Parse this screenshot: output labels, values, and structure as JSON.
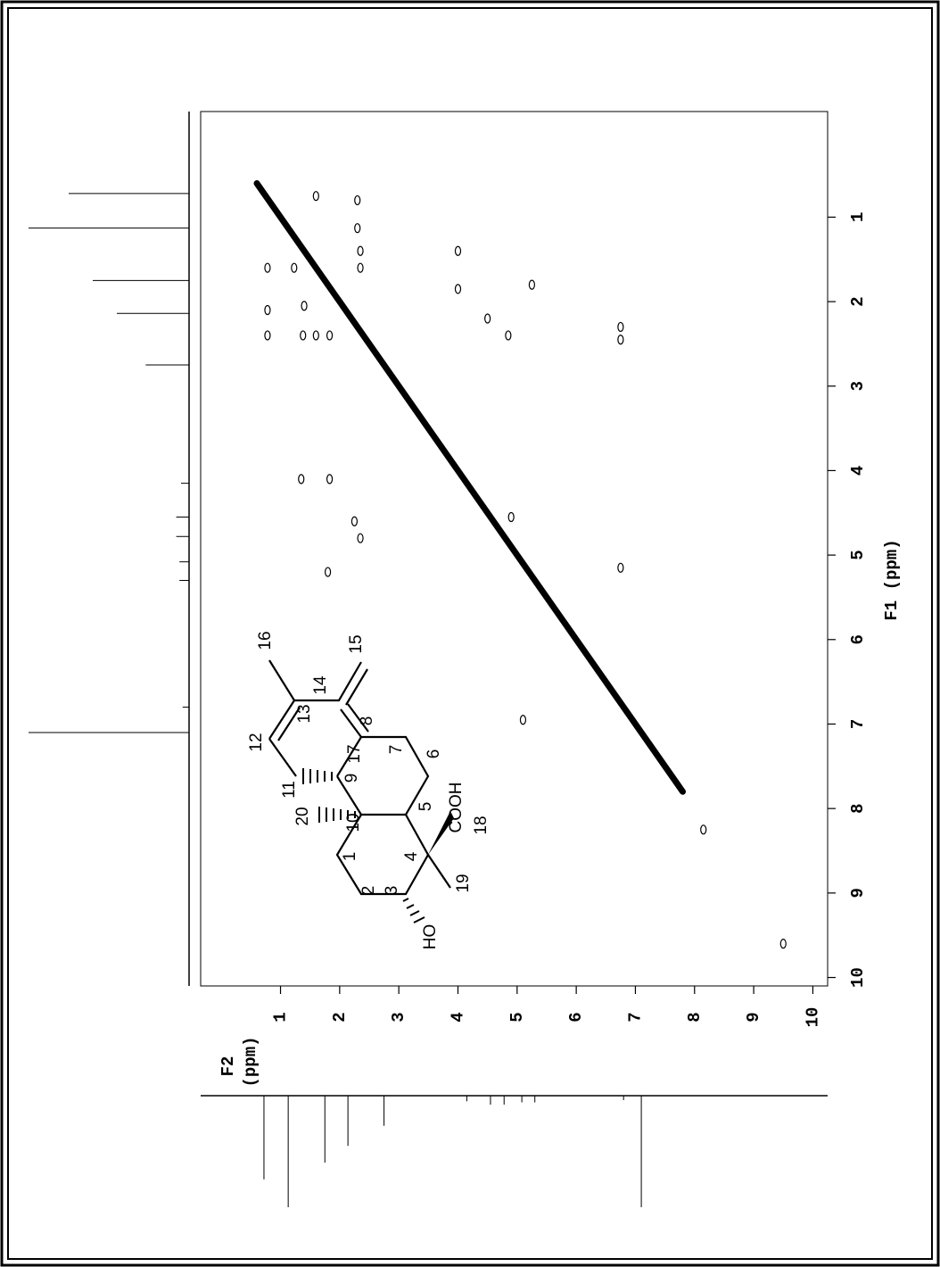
{
  "chart_data": {
    "type": "cosy",
    "xlabel": [
      "F2",
      "(ppm)"
    ],
    "ylabel": "F1 (ppm)",
    "xlim": [
      -0.35,
      10.25
    ],
    "ylim": [
      -0.25,
      10.1
    ],
    "xticks": [
      1,
      2,
      3,
      4,
      5,
      6,
      7,
      8,
      9,
      10
    ],
    "yticks": [
      1,
      2,
      3,
      4,
      5,
      6,
      7,
      8,
      9,
      10
    ],
    "color": "#000000",
    "diagonal": [
      0.6,
      7.8
    ],
    "cross_peaks": {
      "x": [
        4.0,
        4.0,
        5.25,
        4.5,
        4.85,
        6.75,
        6.75,
        1.35,
        1.83,
        2.25,
        2.35,
        1.8,
        6.75,
        5.1,
        4.9,
        8.15,
        9.5,
        1.6,
        2.3,
        2.3,
        2.35,
        2.35,
        0.78,
        0.78,
        1.38,
        1.6,
        1.83,
        0.78,
        1.23,
        1.4
      ],
      "y": [
        1.4,
        1.85,
        1.8,
        2.2,
        2.4,
        2.3,
        2.45,
        4.1,
        4.1,
        4.6,
        4.8,
        5.2,
        5.15,
        6.95,
        4.55,
        8.25,
        9.6,
        0.75,
        0.8,
        1.13,
        1.4,
        1.6,
        1.6,
        2.1,
        2.4,
        2.4,
        2.4,
        2.4,
        1.6,
        2.05
      ]
    },
    "projection": {
      "ppm": [
        0.72,
        1.13,
        1.75,
        2.14,
        2.75,
        4.15,
        4.55,
        4.78,
        5.08,
        5.3,
        6.8,
        7.1
      ],
      "intensity": [
        75,
        100,
        60,
        45,
        27,
        5,
        8,
        8,
        6,
        6,
        4,
        100
      ]
    },
    "structure": {
      "labels": [
        "1",
        "2",
        "3",
        "4",
        "5",
        "6",
        "7",
        "8",
        "9",
        "10",
        "11",
        "12",
        "13",
        "14",
        "15",
        "16",
        "17",
        "18",
        "19",
        "20",
        "HO",
        "COOH"
      ]
    }
  }
}
